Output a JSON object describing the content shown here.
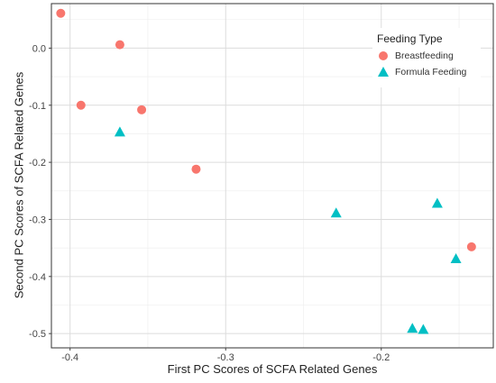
{
  "chart_data": {
    "type": "scatter",
    "xlabel": "First PC Scores of SCFA Related Genes",
    "ylabel": "Second PC Scores of SCFA Related Genes",
    "xlim": [
      -0.412,
      -0.128
    ],
    "ylim": [
      -0.525,
      0.078
    ],
    "x_ticks": [
      -0.4,
      -0.3,
      -0.2
    ],
    "x_tick_labels": [
      "-0.4",
      "-0.3",
      "-0.2"
    ],
    "y_ticks": [
      0.0,
      -0.1,
      -0.2,
      -0.3,
      -0.4,
      -0.5
    ],
    "y_tick_labels": [
      "0.0",
      "-0.1",
      "-0.2",
      "-0.3",
      "-0.4",
      "-0.5"
    ],
    "grid": true,
    "legend": {
      "title": "Feeding Type",
      "position": "top-right"
    },
    "series": [
      {
        "name": "Breastfeeding",
        "marker": "circle",
        "color": "#F8766D",
        "points": [
          {
            "x": -0.406,
            "y": 0.061
          },
          {
            "x": -0.368,
            "y": 0.006
          },
          {
            "x": -0.393,
            "y": -0.1
          },
          {
            "x": -0.354,
            "y": -0.108
          },
          {
            "x": -0.319,
            "y": -0.212
          },
          {
            "x": -0.142,
            "y": -0.348
          }
        ]
      },
      {
        "name": "Formula Feeding",
        "marker": "triangle",
        "color": "#00BFC4",
        "points": [
          {
            "x": -0.368,
            "y": -0.148
          },
          {
            "x": -0.229,
            "y": -0.29
          },
          {
            "x": -0.164,
            "y": -0.273
          },
          {
            "x": -0.152,
            "y": -0.37
          },
          {
            "x": -0.18,
            "y": -0.492
          },
          {
            "x": -0.173,
            "y": -0.494
          }
        ]
      }
    ]
  }
}
